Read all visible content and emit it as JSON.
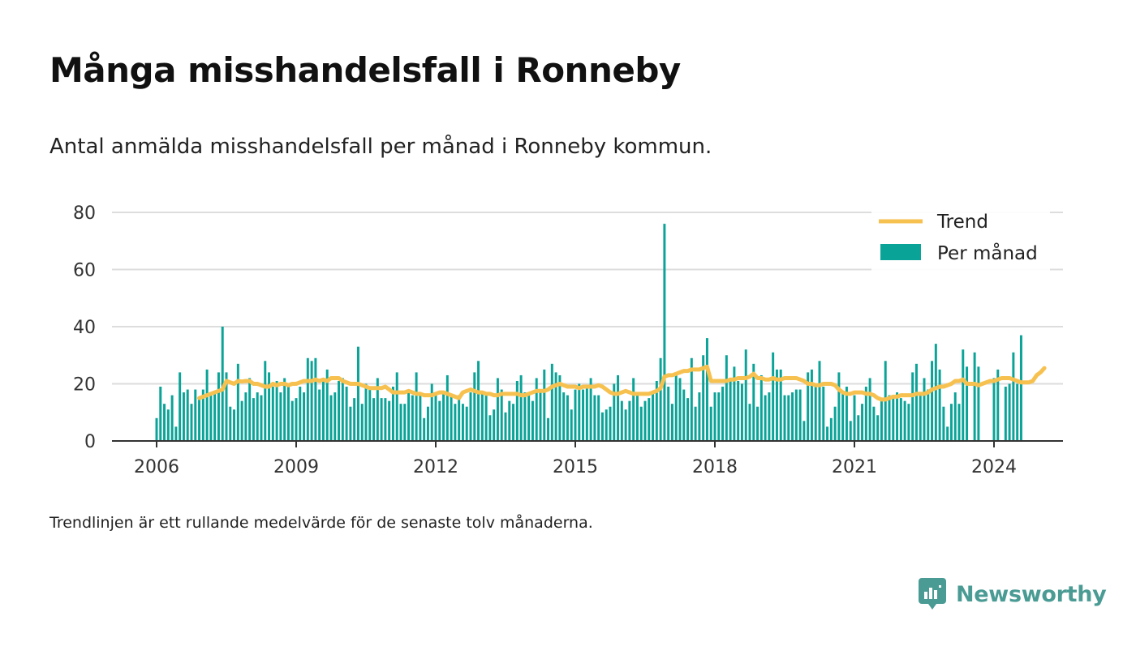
{
  "header": {
    "title": "Många misshandelsfall i Ronneby",
    "subtitle": "Antal anmälda misshandelsfall per månad i Ronneby kommun."
  },
  "footer": {
    "note": "Trendlinjen är ett rullande medelvärde för de senaste tolv månaderna.",
    "brand": "Newsworthy"
  },
  "colors": {
    "bar": "#0aa397",
    "trend": "#f7c150",
    "grid": "#dddddd",
    "axis": "#333333",
    "brand": "#4a9b94"
  },
  "chart_data": {
    "type": "bar",
    "title": "Många misshandelsfall i Ronneby",
    "x_start": "2006-01",
    "x_ticks": [
      "2006",
      "2009",
      "2012",
      "2015",
      "2018",
      "2021",
      "2024"
    ],
    "y_ticks": [
      0,
      20,
      40,
      60,
      80
    ],
    "ylim": [
      0,
      80
    ],
    "grid": true,
    "legend_position": "top-right",
    "series": [
      {
        "name": "Per månad",
        "kind": "bar",
        "values": [
          8,
          19,
          13,
          11,
          16,
          5,
          24,
          17,
          18,
          13,
          18,
          15,
          18,
          25,
          16,
          17,
          24,
          40,
          24,
          12,
          11,
          27,
          14,
          17,
          22,
          15,
          17,
          16,
          28,
          24,
          19,
          21,
          17,
          22,
          19,
          14,
          15,
          19,
          17,
          29,
          28,
          29,
          18,
          22,
          25,
          16,
          17,
          21,
          22,
          19,
          12,
          15,
          33,
          13,
          20,
          18,
          15,
          22,
          15,
          15,
          14,
          19,
          24,
          13,
          13,
          17,
          16,
          24,
          16,
          8,
          12,
          20,
          16,
          14,
          17,
          23,
          16,
          13,
          16,
          13,
          12,
          17,
          24,
          28,
          17,
          16,
          9,
          11,
          22,
          18,
          10,
          14,
          13,
          21,
          23,
          17,
          16,
          14,
          22,
          17,
          25,
          8,
          27,
          24,
          23,
          17,
          16,
          11,
          18,
          20,
          18,
          19,
          22,
          16,
          16,
          10,
          11,
          12,
          20,
          23,
          14,
          11,
          14,
          22,
          16,
          12,
          14,
          15,
          17,
          21,
          29,
          76,
          19,
          13,
          24,
          22,
          18,
          15,
          29,
          12,
          17,
          30,
          36,
          12,
          17,
          17,
          19,
          30,
          22,
          26,
          21,
          20,
          32,
          13,
          27,
          12,
          23,
          16,
          17,
          31,
          25,
          25,
          16,
          16,
          17,
          18,
          18,
          7,
          24,
          25,
          19,
          28,
          19,
          5,
          8,
          12,
          24,
          17,
          19,
          7,
          16,
          9,
          13,
          19,
          22,
          12,
          9,
          15,
          28,
          16,
          16,
          17,
          15,
          14,
          13,
          24,
          27,
          16,
          22,
          18,
          28,
          34,
          25,
          12,
          5,
          13,
          17,
          13,
          32,
          26,
          0,
          31,
          26,
          0,
          0,
          0,
          22,
          25,
          0,
          19,
          20,
          31,
          20,
          37
        ]
      },
      {
        "name": "Trend",
        "kind": "line",
        "start_index": 11,
        "values": [
          15,
          15.5,
          16,
          16.5,
          17,
          17.5,
          18,
          21,
          20.5,
          20,
          21,
          20.8,
          21,
          21,
          20,
          20,
          19.5,
          19,
          19,
          20,
          19.5,
          20,
          20,
          19.5,
          20,
          20,
          20.5,
          21,
          21,
          21,
          21.5,
          21,
          21.5,
          21,
          22,
          22,
          22,
          21,
          20.5,
          20,
          20,
          20,
          19.5,
          19,
          18.5,
          18.5,
          18.5,
          18.5,
          19,
          18,
          17,
          17,
          17,
          17,
          17.5,
          17,
          16.5,
          16.5,
          16,
          16,
          16,
          16.5,
          17,
          17,
          16.5,
          16,
          15.5,
          15,
          17,
          17.5,
          18,
          17.5,
          17,
          17,
          16.5,
          16.5,
          16,
          16,
          16.5,
          16.5,
          16.5,
          16.5,
          16.5,
          16,
          16,
          16.5,
          17,
          17.5,
          17.5,
          17.5,
          18,
          19,
          19.5,
          20,
          19.5,
          19,
          19,
          19,
          18.5,
          19,
          19,
          19,
          19,
          19.5,
          19,
          18,
          17,
          16.5,
          16.5,
          17,
          17.5,
          17,
          16.5,
          16.5,
          16.5,
          16.5,
          16.5,
          17,
          17.5,
          18.5,
          22.5,
          23,
          23,
          23.5,
          24,
          24.5,
          24.5,
          25,
          25,
          25,
          25.5,
          26,
          21,
          21,
          21,
          21,
          21,
          21.5,
          21.5,
          22,
          22,
          22,
          22.5,
          23.5,
          22,
          22,
          21.5,
          21.5,
          22,
          21.5,
          21.5,
          22,
          22,
          22,
          22,
          21.5,
          21,
          20,
          20,
          19.5,
          19.5,
          20,
          20,
          20,
          19.5,
          18,
          17,
          16.5,
          16.5,
          17,
          17,
          17,
          16.5,
          16.5,
          16,
          15,
          14.5,
          14.5,
          15,
          15.5,
          15.5,
          16,
          16,
          16,
          16,
          16.5,
          16.5,
          16.5,
          17,
          18,
          18.5,
          19,
          19,
          19.5,
          20,
          21,
          21,
          21.5,
          20,
          20,
          20,
          19.5,
          20,
          20.5,
          21,
          21,
          21.5,
          22,
          22,
          22,
          21.5,
          21,
          20.5,
          20.5,
          20.5,
          21,
          23,
          24,
          25.5
        ]
      }
    ]
  }
}
